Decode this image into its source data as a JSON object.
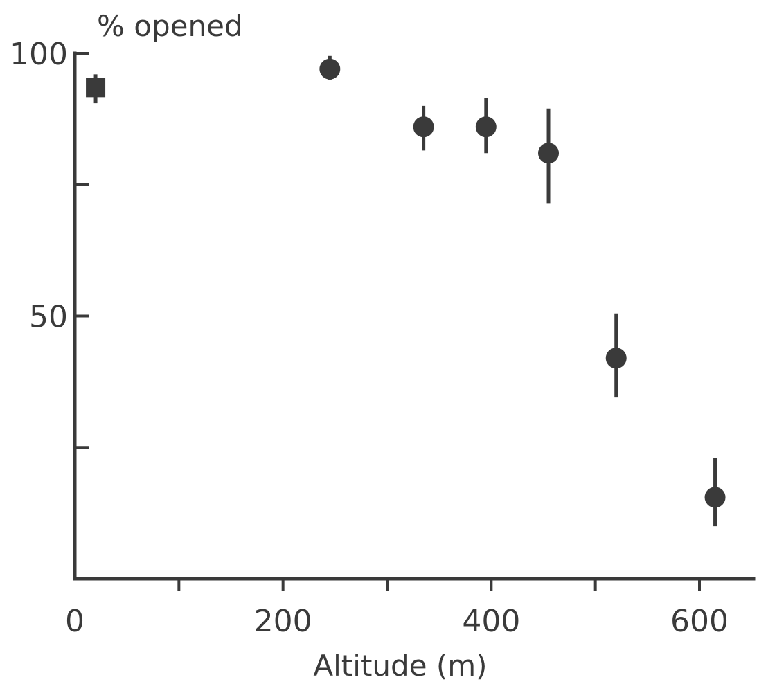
{
  "chart_data": {
    "type": "scatter",
    "ylabel": "% opened",
    "xlabel": "Altitude (m)",
    "xlim": [
      0,
      650
    ],
    "ylim": [
      0,
      100
    ],
    "x_ticks": [
      0,
      100,
      200,
      300,
      400,
      500,
      600
    ],
    "x_tick_labels": [
      "0",
      "",
      "200",
      "",
      "400",
      "",
      "600"
    ],
    "y_ticks": [
      50,
      75,
      100
    ],
    "minor_y_ticks": [
      25,
      75
    ],
    "y_tick_labels": [
      "50",
      "",
      "100"
    ],
    "grid": false,
    "legend": "none",
    "points": [
      {
        "x": 20,
        "y": 93.5,
        "low": 90.5,
        "high": 96,
        "marker": "square"
      },
      {
        "x": 245,
        "y": 97,
        "low": 95,
        "high": 99.5,
        "marker": "circle"
      },
      {
        "x": 335,
        "y": 86,
        "low": 81.5,
        "high": 90,
        "marker": "circle"
      },
      {
        "x": 395,
        "y": 86,
        "low": 81,
        "high": 91.5,
        "marker": "circle"
      },
      {
        "x": 455,
        "y": 81,
        "low": 71.5,
        "high": 89.5,
        "marker": "circle"
      },
      {
        "x": 520,
        "y": 42,
        "low": 34.5,
        "high": 50.5,
        "marker": "circle"
      },
      {
        "x": 615,
        "y": 15.5,
        "low": 10,
        "high": 23,
        "marker": "circle"
      }
    ],
    "colors": {
      "ink": "#3a3a3a",
      "background": "#ffffff"
    }
  }
}
